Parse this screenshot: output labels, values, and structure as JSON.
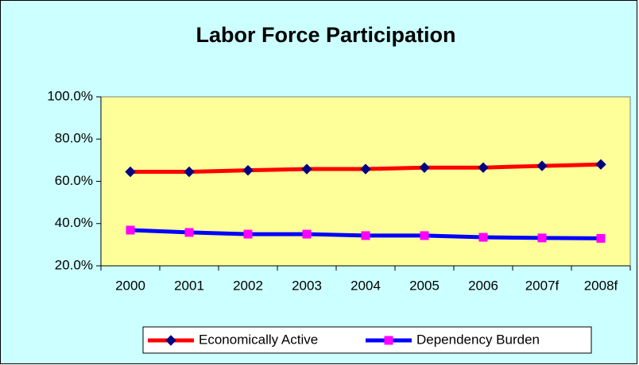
{
  "chart_data": {
    "type": "line",
    "title": "Labor Force Participation",
    "categories": [
      "2000",
      "2001",
      "2002",
      "2003",
      "2004",
      "2005",
      "2006",
      "2007f",
      "2008f"
    ],
    "series": [
      {
        "name": "Economically Active",
        "color": "#ff0000",
        "marker_color": "#000080",
        "marker": "diamond",
        "values": [
          64.5,
          64.5,
          65.2,
          65.8,
          65.8,
          66.5,
          66.5,
          67.3,
          68.0
        ]
      },
      {
        "name": "Dependency Burden",
        "color": "#0000ff",
        "marker_color": "#ff00ff",
        "marker": "square",
        "values": [
          36.9,
          35.8,
          35.0,
          35.0,
          34.3,
          34.3,
          33.5,
          33.2,
          33.0
        ]
      }
    ],
    "ylim": [
      20,
      100
    ],
    "yticks": [
      {
        "value": 20,
        "label": "20.0%"
      },
      {
        "value": 40,
        "label": "40.0%"
      },
      {
        "value": 60,
        "label": "60.0%"
      },
      {
        "value": 80,
        "label": "80.0%"
      },
      {
        "value": 100,
        "label": "100.0%"
      }
    ],
    "grid": false,
    "legend": "bottom",
    "background": "#ccffff",
    "plot_background": "#ffff99"
  }
}
